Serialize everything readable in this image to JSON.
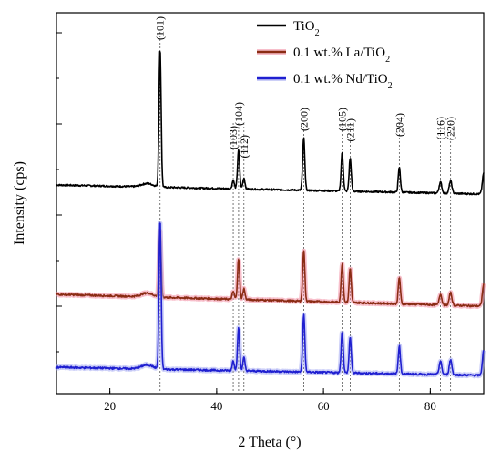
{
  "chart_data": {
    "type": "line",
    "xlabel": "2 Theta (°)",
    "ylabel": "Intensity (cps)",
    "xlim": [
      10,
      90
    ],
    "x_ticks": [
      20,
      40,
      60,
      80
    ],
    "x_tick_labels": [
      "20",
      "40",
      "60",
      "80"
    ],
    "y_tick_labels_shown": false,
    "grid": false,
    "legend_position": "top-right",
    "series": [
      {
        "name": "TiO",
        "name_sub": "2",
        "color": "#000000",
        "offset": 2,
        "baseline": 0.12,
        "baseline_end": 0.0
      },
      {
        "name": "0.1 wt.% La/TiO",
        "name_sub": "2",
        "color": "#8b2c14",
        "glow": "#f28aa0",
        "offset": 1,
        "baseline": 0.15,
        "baseline_end": 0.0
      },
      {
        "name": "0.1 wt.% Nd/TiO",
        "name_sub": "2",
        "color": "#1f1fd0",
        "glow": "#a3a8f2",
        "offset": 0,
        "baseline": 0.12,
        "baseline_end": 0.0
      }
    ],
    "peaks": [
      {
        "x": 29.4,
        "hkl": "(101)",
        "heights": [
          1.0,
          0.43,
          0.9
        ]
      },
      {
        "x": 43.1,
        "hkl": "(103)",
        "heights": [
          0.06,
          0.05,
          0.06
        ]
      },
      {
        "x": 44.1,
        "hkl": "(104)",
        "heights": [
          0.28,
          0.26,
          0.26
        ]
      },
      {
        "x": 45.1,
        "hkl": "(112)",
        "heights": [
          0.08,
          0.07,
          0.08
        ]
      },
      {
        "x": 56.3,
        "hkl": "(200)",
        "heights": [
          0.38,
          0.33,
          0.35
        ]
      },
      {
        "x": 63.5,
        "hkl": "(105)",
        "heights": [
          0.28,
          0.25,
          0.25
        ]
      },
      {
        "x": 65.0,
        "hkl": "(211)",
        "heights": [
          0.24,
          0.22,
          0.22
        ]
      },
      {
        "x": 74.2,
        "hkl": "(204)",
        "heights": [
          0.18,
          0.17,
          0.17
        ]
      },
      {
        "x": 81.9,
        "hkl": "(116)",
        "heights": [
          0.08,
          0.07,
          0.08
        ]
      },
      {
        "x": 83.8,
        "hkl": "(220)",
        "heights": [
          0.09,
          0.08,
          0.09
        ]
      },
      {
        "x": 90.0,
        "hkl": "",
        "heights": [
          0.15,
          0.14,
          0.15
        ]
      }
    ]
  }
}
